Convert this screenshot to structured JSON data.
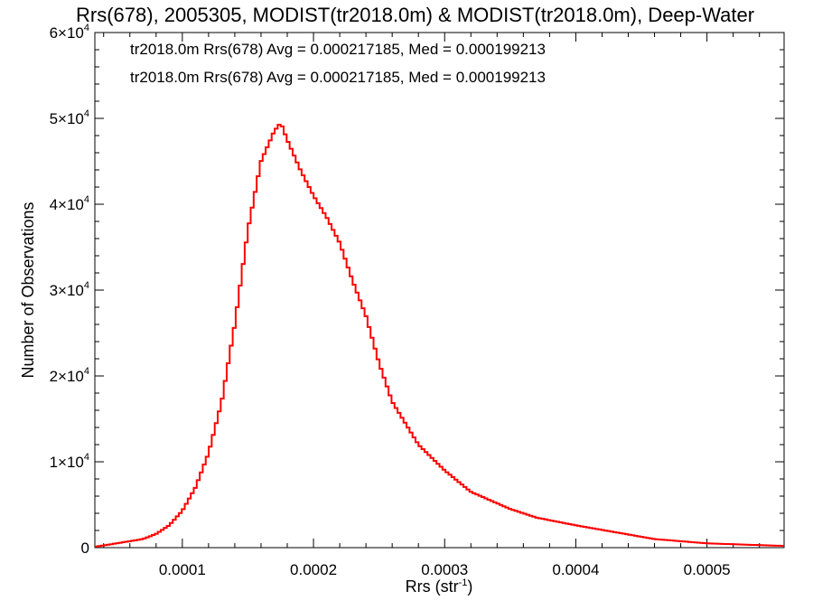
{
  "chart_data": {
    "type": "histogram",
    "title": "Rrs(678), 2005305, MODIST(tr2018.0m) & MODIST(tr2018.0m), Deep-Water",
    "xlabel": "Rrs (str",
    "xlabel_sup": "-1",
    "xlabel_close": ")",
    "ylabel": "Number of Observations",
    "xlim": [
      3.33e-05,
      0.0005588
    ],
    "ylim": [
      0,
      60000
    ],
    "x_ticks": [
      0.0001,
      0.0002,
      0.0003,
      0.0004,
      0.0005
    ],
    "x_tick_labels": [
      "0.0001",
      "0.0002",
      "0.0003",
      "0.0004",
      "0.0005"
    ],
    "y_ticks": [
      0,
      10000,
      20000,
      30000,
      40000,
      50000,
      60000
    ],
    "y_tick_labels": [
      {
        "base": "0",
        "sup": ""
      },
      {
        "base": "1×10",
        "sup": "4"
      },
      {
        "base": "2×10",
        "sup": "4"
      },
      {
        "base": "3×10",
        "sup": "4"
      },
      {
        "base": "4×10",
        "sup": "4"
      },
      {
        "base": "5×10",
        "sup": "4"
      },
      {
        "base": "6×10",
        "sup": "4"
      }
    ],
    "annotations": [
      {
        "text": "tr2018.0m Rrs(678) Avg = 0.000217185, Med = 0.000199213",
        "color": "#000000"
      },
      {
        "text": "tr2018.0m Rrs(678) Avg = 0.000217185, Med = 0.000199213",
        "color": "#ff0000"
      }
    ],
    "series": [
      {
        "color": "#ff0000",
        "x": [
          3.33e-05,
          5e-05,
          7e-05,
          8e-05,
          9e-05,
          0.0001,
          0.00011,
          0.00012,
          0.00013,
          0.00014,
          0.00015,
          0.00016,
          0.00017,
          0.000175,
          0.00018,
          0.00019,
          0.0002,
          0.00021,
          0.00022,
          0.00023,
          0.00024,
          0.00025,
          0.00026,
          0.00027,
          0.00028,
          0.0003,
          0.00032,
          0.00035,
          0.00037,
          0.0004,
          0.00043,
          0.00046,
          0.0005,
          0.0005588
        ],
        "counts": [
          100,
          500,
          1000,
          1600,
          2600,
          4300,
          7000,
          11000,
          17000,
          26000,
          37000,
          45000,
          48500,
          49500,
          47500,
          44000,
          41000,
          38500,
          35500,
          31000,
          27000,
          21500,
          17000,
          14500,
          12000,
          9000,
          6500,
          4500,
          3500,
          2600,
          1800,
          1000,
          500,
          200
        ]
      }
    ]
  }
}
